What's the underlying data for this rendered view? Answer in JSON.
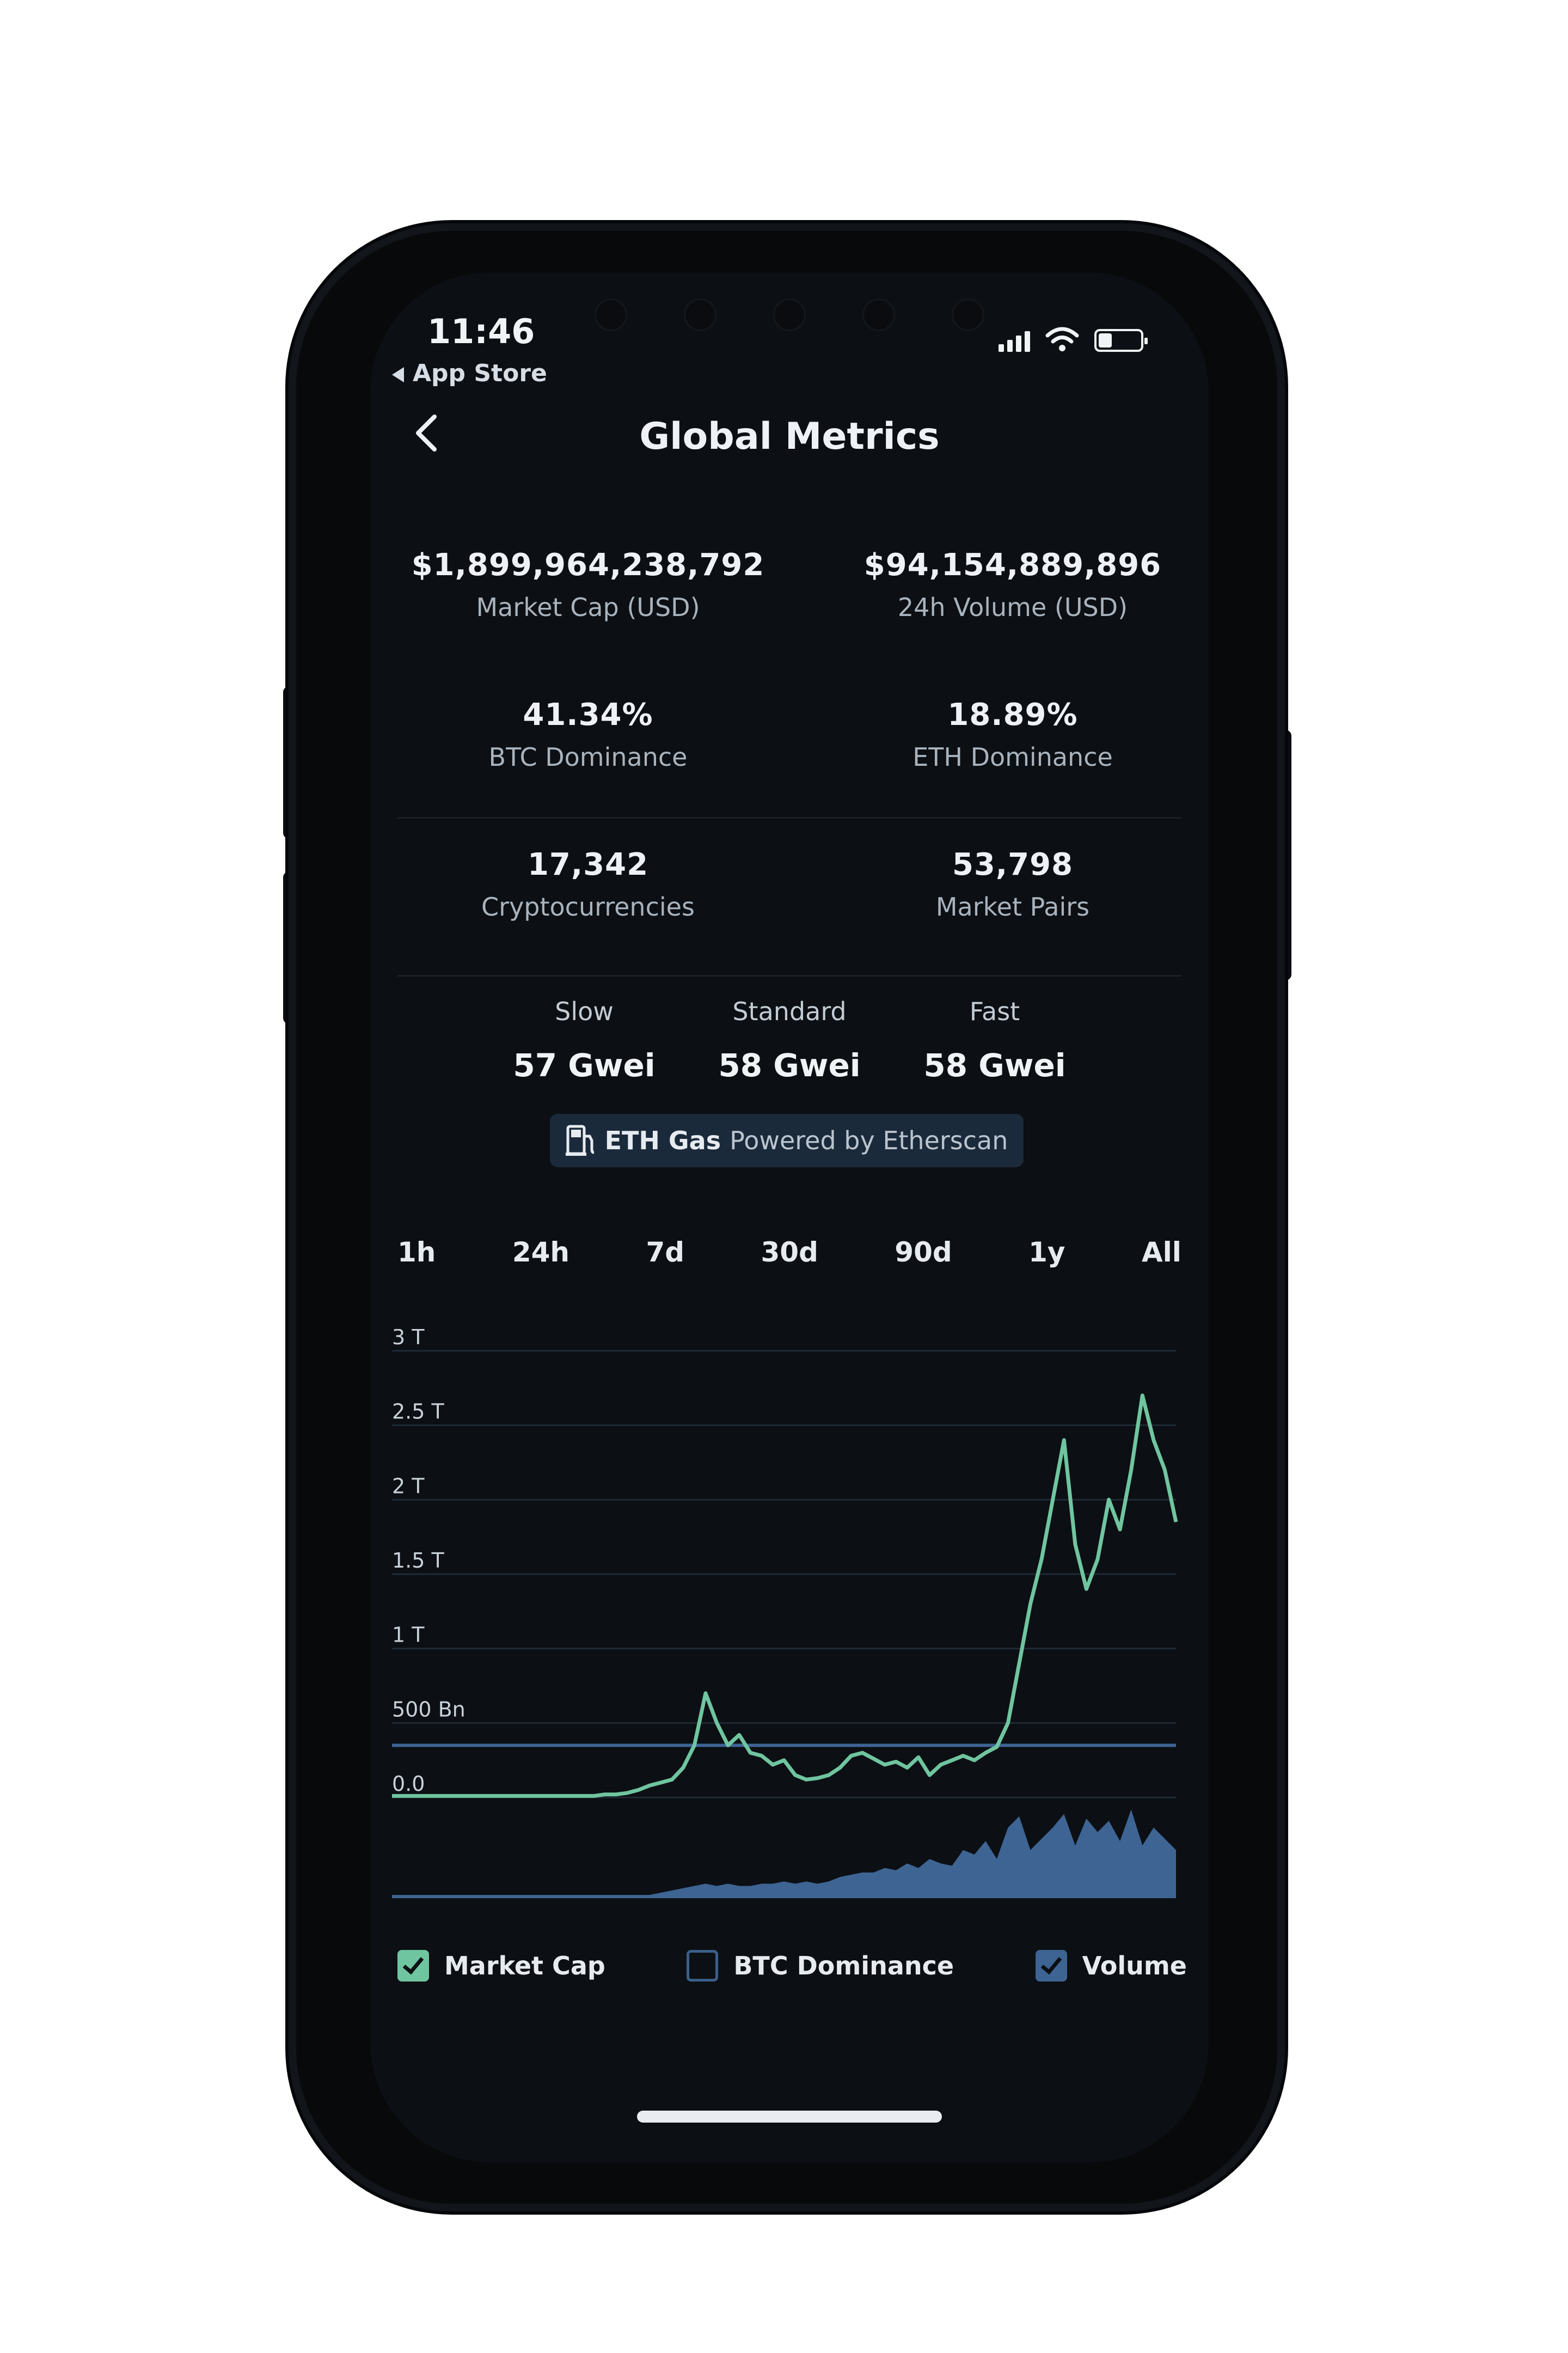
{
  "status_bar": {
    "time": "11:46",
    "back_app": "App Store"
  },
  "nav": {
    "title": "Global Metrics"
  },
  "metrics": {
    "market_cap": {
      "value": "$1,899,964,238,792",
      "label": "Market Cap (USD)"
    },
    "volume_24h": {
      "value": "$94,154,889,896",
      "label": "24h Volume (USD)"
    },
    "btc_dominance": {
      "value": "41.34%",
      "label": "BTC Dominance"
    },
    "eth_dominance": {
      "value": "18.89%",
      "label": "ETH Dominance"
    },
    "cryptocurrencies": {
      "value": "17,342",
      "label": "Cryptocurrencies"
    },
    "market_pairs": {
      "value": "53,798",
      "label": "Market Pairs"
    }
  },
  "gas": {
    "slow": {
      "label": "Slow",
      "value": "57 Gwei"
    },
    "standard": {
      "label": "Standard",
      "value": "58 Gwei"
    },
    "fast": {
      "label": "Fast",
      "value": "58 Gwei"
    },
    "badge_title": "ETH Gas",
    "badge_sub": "Powered by Etherscan",
    "badge_icon": "gas-pump-icon"
  },
  "tabs": [
    "1h",
    "24h",
    "7d",
    "30d",
    "90d",
    "1y",
    "All"
  ],
  "legend": {
    "market_cap": "Market Cap",
    "btc_dominance": "BTC Dominance",
    "volume": "Volume"
  },
  "colors": {
    "market_cap_line": "#6fc5a0",
    "btc_dominance_line": "#3d6493",
    "volume_area": "#3d6493"
  },
  "chart_data": {
    "type": "line",
    "y_ticks": [
      "3 T",
      "2.5 T",
      "2 T",
      "1.5 T",
      "1 T",
      "500 Bn",
      "0.0"
    ],
    "ylim": [
      0,
      3
    ],
    "y_unit": "T",
    "series": [
      {
        "name": "Market Cap",
        "values": [
          0.01,
          0.01,
          0.01,
          0.01,
          0.01,
          0.01,
          0.01,
          0.01,
          0.01,
          0.01,
          0.01,
          0.01,
          0.01,
          0.01,
          0.01,
          0.01,
          0.01,
          0.01,
          0.01,
          0.02,
          0.02,
          0.03,
          0.05,
          0.08,
          0.1,
          0.12,
          0.2,
          0.35,
          0.7,
          0.5,
          0.35,
          0.42,
          0.3,
          0.28,
          0.22,
          0.25,
          0.15,
          0.12,
          0.13,
          0.15,
          0.2,
          0.28,
          0.3,
          0.26,
          0.22,
          0.24,
          0.2,
          0.27,
          0.15,
          0.22,
          0.25,
          0.28,
          0.25,
          0.3,
          0.34,
          0.5,
          0.9,
          1.3,
          1.6,
          2.0,
          2.4,
          1.7,
          1.4,
          1.6,
          2.0,
          1.8,
          2.2,
          2.7,
          2.4,
          2.2,
          1.85
        ]
      },
      {
        "name": "BTC Dominance",
        "values": [
          0.35,
          0.35
        ]
      },
      {
        "name": "Volume",
        "values": [
          0.0,
          0.0,
          0.0,
          0.0,
          0.0,
          0.0,
          0.0,
          0.0,
          0.0,
          0.0,
          0.0,
          0.0,
          0.0,
          0.0,
          0.0,
          0.0,
          0.0,
          0.0,
          0.0,
          0.0,
          0.0,
          0.0,
          0.0,
          0.0,
          0.01,
          0.02,
          0.03,
          0.04,
          0.05,
          0.04,
          0.05,
          0.04,
          0.04,
          0.05,
          0.05,
          0.06,
          0.05,
          0.06,
          0.05,
          0.06,
          0.08,
          0.09,
          0.1,
          0.1,
          0.12,
          0.11,
          0.14,
          0.12,
          0.16,
          0.14,
          0.13,
          0.2,
          0.18,
          0.24,
          0.16,
          0.3,
          0.35,
          0.2,
          0.25,
          0.3,
          0.36,
          0.22,
          0.34,
          0.28,
          0.33,
          0.24,
          0.38,
          0.22,
          0.3,
          0.25,
          0.2
        ]
      }
    ]
  }
}
